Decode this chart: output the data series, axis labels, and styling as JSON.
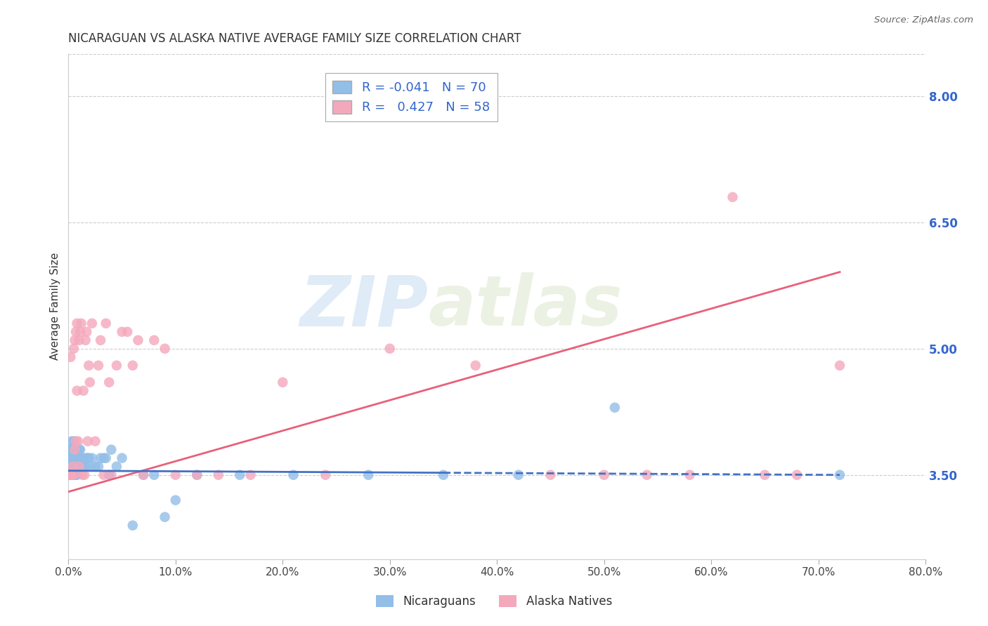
{
  "title": "NICARAGUAN VS ALASKA NATIVE AVERAGE FAMILY SIZE CORRELATION CHART",
  "source": "Source: ZipAtlas.com",
  "ylabel": "Average Family Size",
  "xlabel_ticks": [
    "0.0%",
    "10.0%",
    "20.0%",
    "30.0%",
    "40.0%",
    "50.0%",
    "60.0%",
    "70.0%",
    "80.0%"
  ],
  "yticks_right": [
    3.5,
    5.0,
    6.5,
    8.0
  ],
  "ylim": [
    2.5,
    8.5
  ],
  "xlim": [
    0.0,
    0.8
  ],
  "nicaraguan_R": "-0.041",
  "nicaraguan_N": "70",
  "alaska_R": "0.427",
  "alaska_N": "58",
  "blue_color": "#92BEE8",
  "pink_color": "#F4A8BC",
  "blue_line_color": "#4472C4",
  "pink_line_color": "#E8607A",
  "legend_text_color": "#3366CC",
  "background_color": "#FFFFFF",
  "grid_color": "#CCCCCC",
  "watermark_zip": "ZIP",
  "watermark_atlas": "atlas",
  "nicaraguan_x": [
    0.001,
    0.001,
    0.001,
    0.002,
    0.002,
    0.002,
    0.002,
    0.003,
    0.003,
    0.003,
    0.003,
    0.003,
    0.004,
    0.004,
    0.004,
    0.004,
    0.005,
    0.005,
    0.005,
    0.005,
    0.005,
    0.006,
    0.006,
    0.006,
    0.006,
    0.007,
    0.007,
    0.007,
    0.007,
    0.008,
    0.008,
    0.008,
    0.009,
    0.009,
    0.01,
    0.01,
    0.011,
    0.011,
    0.012,
    0.013,
    0.014,
    0.015,
    0.016,
    0.017,
    0.018,
    0.019,
    0.02,
    0.022,
    0.025,
    0.028,
    0.03,
    0.033,
    0.035,
    0.038,
    0.04,
    0.045,
    0.05,
    0.06,
    0.07,
    0.08,
    0.09,
    0.1,
    0.12,
    0.16,
    0.21,
    0.28,
    0.35,
    0.42,
    0.51,
    0.72
  ],
  "nicaraguan_y": [
    3.6,
    3.5,
    3.7,
    3.5,
    3.6,
    3.8,
    3.7,
    3.5,
    3.6,
    3.8,
    3.9,
    3.7,
    3.5,
    3.6,
    3.7,
    3.8,
    3.5,
    3.6,
    3.7,
    3.8,
    3.9,
    3.5,
    3.6,
    3.7,
    3.8,
    3.5,
    3.6,
    3.7,
    3.8,
    3.5,
    3.7,
    3.8,
    3.6,
    3.7,
    3.6,
    3.8,
    3.7,
    3.8,
    3.7,
    3.6,
    3.7,
    3.6,
    3.6,
    3.7,
    3.7,
    3.7,
    3.6,
    3.7,
    3.6,
    3.6,
    3.7,
    3.7,
    3.7,
    3.5,
    3.8,
    3.6,
    3.7,
    2.9,
    3.5,
    3.5,
    3.0,
    3.2,
    3.5,
    3.5,
    3.5,
    3.5,
    3.5,
    3.5,
    4.3,
    3.5
  ],
  "alaska_x": [
    0.001,
    0.002,
    0.002,
    0.003,
    0.004,
    0.005,
    0.005,
    0.006,
    0.006,
    0.007,
    0.007,
    0.008,
    0.008,
    0.009,
    0.01,
    0.01,
    0.011,
    0.012,
    0.013,
    0.014,
    0.015,
    0.016,
    0.017,
    0.018,
    0.019,
    0.02,
    0.022,
    0.025,
    0.028,
    0.03,
    0.033,
    0.035,
    0.038,
    0.04,
    0.045,
    0.05,
    0.055,
    0.06,
    0.065,
    0.07,
    0.08,
    0.09,
    0.1,
    0.12,
    0.14,
    0.17,
    0.2,
    0.24,
    0.3,
    0.38,
    0.45,
    0.5,
    0.54,
    0.58,
    0.62,
    0.65,
    0.68,
    0.72
  ],
  "alaska_y": [
    3.5,
    3.5,
    4.9,
    3.5,
    3.6,
    3.5,
    5.0,
    3.8,
    5.1,
    3.9,
    5.2,
    4.5,
    5.3,
    3.9,
    3.6,
    5.1,
    5.2,
    5.3,
    3.5,
    4.5,
    3.5,
    5.1,
    5.2,
    3.9,
    4.8,
    4.6,
    5.3,
    3.9,
    4.8,
    5.1,
    3.5,
    5.3,
    4.6,
    3.5,
    4.8,
    5.2,
    5.2,
    4.8,
    5.1,
    3.5,
    5.1,
    5.0,
    3.5,
    3.5,
    3.5,
    3.5,
    4.6,
    3.5,
    5.0,
    4.8,
    3.5,
    3.5,
    3.5,
    3.5,
    6.8,
    3.5,
    3.5,
    4.8
  ]
}
